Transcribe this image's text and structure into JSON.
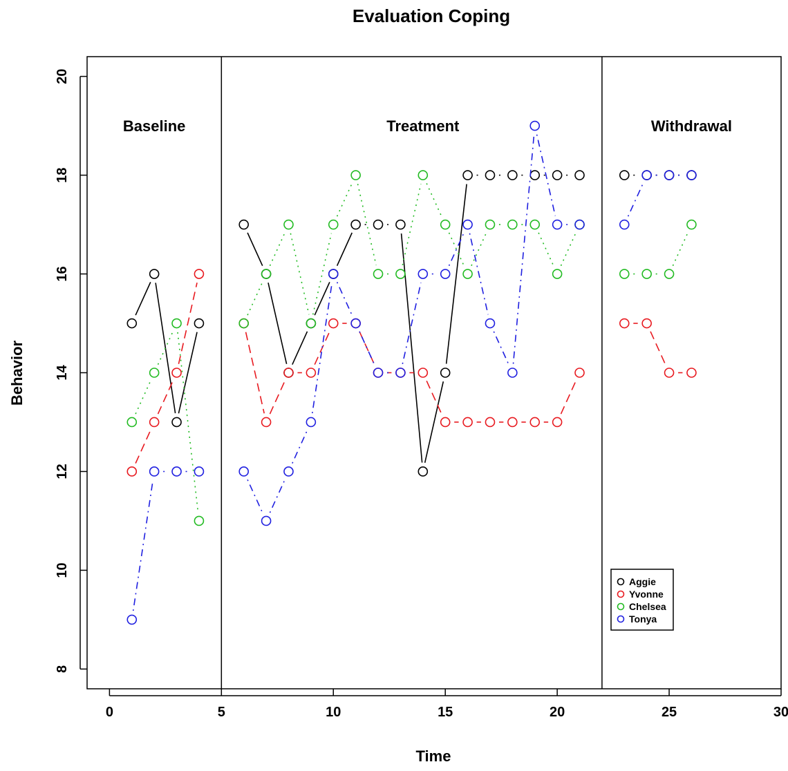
{
  "chart_data": {
    "type": "line",
    "title": "Evaluation Coping",
    "xlabel": "Time",
    "ylabel": "Behavior",
    "xlim": [
      -1,
      30
    ],
    "ylim": [
      7.6,
      20.4
    ],
    "xticks": [
      0,
      5,
      10,
      15,
      20,
      25,
      30
    ],
    "yticks": [
      8,
      10,
      12,
      14,
      16,
      18,
      20
    ],
    "phase_lines": [
      5,
      22
    ],
    "phases": [
      {
        "label": "Baseline",
        "x": 2,
        "y": 19
      },
      {
        "label": "Treatment",
        "x": 14,
        "y": 19
      },
      {
        "label": "Withdrawal",
        "x": 26,
        "y": 19
      }
    ],
    "legend_position": "bottom-right",
    "series": [
      {
        "name": "Aggie",
        "color": "#000000",
        "dash": "solid-then-dashed",
        "segments": [
          {
            "x": [
              1,
              2,
              3,
              4
            ],
            "y": [
              15,
              16,
              13,
              15
            ],
            "dash": "solid"
          },
          {
            "x": [
              6,
              7,
              8,
              9,
              10,
              11
            ],
            "y": [
              17,
              16,
              14,
              15,
              16,
              17
            ],
            "dash": "solid"
          },
          {
            "x": [
              11,
              12,
              13
            ],
            "y": [
              17,
              17,
              17
            ],
            "dash": "dotdash"
          },
          {
            "x": [
              13,
              14,
              15,
              16
            ],
            "y": [
              17,
              12,
              14,
              18
            ],
            "dash": "solid"
          },
          {
            "x": [
              16,
              17,
              18,
              19,
              20,
              21
            ],
            "y": [
              18,
              18,
              18,
              18,
              18,
              18
            ],
            "dash": "dotdash"
          },
          {
            "x": [
              23,
              24,
              25,
              26
            ],
            "y": [
              18,
              18,
              18,
              18
            ],
            "dash": "dotdash"
          }
        ]
      },
      {
        "name": "Yvonne",
        "color": "#e8191f",
        "segments": [
          {
            "x": [
              1,
              2,
              3,
              4
            ],
            "y": [
              12,
              13,
              14,
              16
            ],
            "dash": "dashed"
          },
          {
            "x": [
              6,
              7,
              8,
              9,
              10,
              11,
              12,
              13,
              14,
              15,
              16,
              17,
              18,
              19,
              20,
              21
            ],
            "y": [
              15,
              13,
              14,
              14,
              15,
              15,
              14,
              14,
              14,
              13,
              13,
              13,
              13,
              13,
              13,
              14
            ],
            "dash": "dashed"
          },
          {
            "x": [
              23,
              24,
              25,
              26
            ],
            "y": [
              15,
              15,
              14,
              14
            ],
            "dash": "dashed"
          }
        ]
      },
      {
        "name": "Chelsea",
        "color": "#22bb22",
        "segments": [
          {
            "x": [
              1,
              2,
              3,
              4
            ],
            "y": [
              13,
              14,
              15,
              11
            ],
            "dash": "dotted"
          },
          {
            "x": [
              6,
              7,
              8,
              9,
              10,
              11,
              12,
              13,
              14,
              15,
              16,
              17,
              18,
              19,
              20,
              21
            ],
            "y": [
              15,
              16,
              17,
              15,
              17,
              18,
              16,
              16,
              18,
              17,
              16,
              17,
              17,
              17,
              16,
              17
            ],
            "dash": "dotted"
          },
          {
            "x": [
              23,
              24,
              25,
              26
            ],
            "y": [
              16,
              16,
              16,
              17
            ],
            "dash": "dotted"
          }
        ]
      },
      {
        "name": "Tonya",
        "color": "#1f1fe0",
        "segments": [
          {
            "x": [
              1,
              2,
              3,
              4
            ],
            "y": [
              9,
              12,
              12,
              12
            ],
            "dash": "dotdash"
          },
          {
            "x": [
              6,
              7,
              8,
              9,
              10,
              11,
              12,
              13,
              14,
              15,
              16,
              17,
              18,
              19,
              20,
              21
            ],
            "y": [
              12,
              11,
              12,
              13,
              16,
              15,
              14,
              14,
              16,
              16,
              17,
              15,
              14,
              19,
              17,
              17
            ],
            "dash": "dotdash"
          },
          {
            "x": [
              23,
              24,
              25,
              26
            ],
            "y": [
              17,
              18,
              18,
              18
            ],
            "dash": "dotdash"
          }
        ]
      }
    ]
  }
}
